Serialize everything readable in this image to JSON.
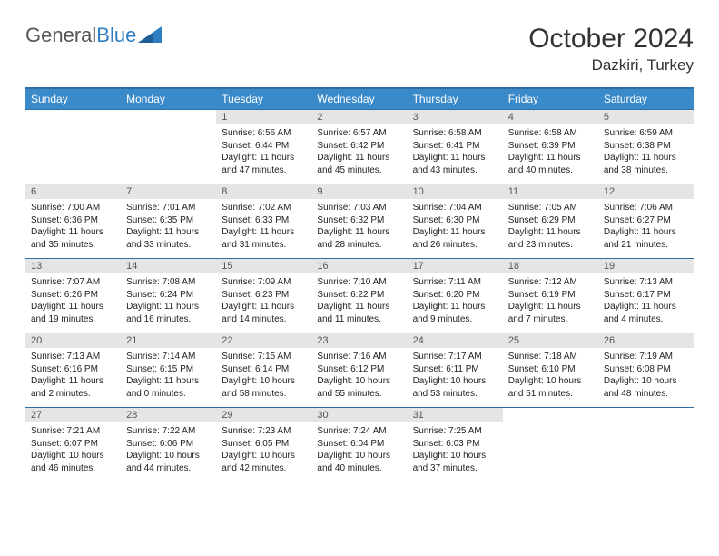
{
  "brand": {
    "part1": "General",
    "part2": "Blue"
  },
  "title": "October 2024",
  "location": "Dazkiri, Turkey",
  "colors": {
    "header_bg": "#3a89c9",
    "header_border": "#2f6fa3",
    "daynum_bg": "#e5e5e5",
    "text": "#222222"
  },
  "weekdays": [
    "Sunday",
    "Monday",
    "Tuesday",
    "Wednesday",
    "Thursday",
    "Friday",
    "Saturday"
  ],
  "grid": [
    [
      {
        "n": "",
        "lines": []
      },
      {
        "n": "",
        "lines": []
      },
      {
        "n": "1",
        "lines": [
          "Sunrise: 6:56 AM",
          "Sunset: 6:44 PM",
          "Daylight: 11 hours",
          "and 47 minutes."
        ]
      },
      {
        "n": "2",
        "lines": [
          "Sunrise: 6:57 AM",
          "Sunset: 6:42 PM",
          "Daylight: 11 hours",
          "and 45 minutes."
        ]
      },
      {
        "n": "3",
        "lines": [
          "Sunrise: 6:58 AM",
          "Sunset: 6:41 PM",
          "Daylight: 11 hours",
          "and 43 minutes."
        ]
      },
      {
        "n": "4",
        "lines": [
          "Sunrise: 6:58 AM",
          "Sunset: 6:39 PM",
          "Daylight: 11 hours",
          "and 40 minutes."
        ]
      },
      {
        "n": "5",
        "lines": [
          "Sunrise: 6:59 AM",
          "Sunset: 6:38 PM",
          "Daylight: 11 hours",
          "and 38 minutes."
        ]
      }
    ],
    [
      {
        "n": "6",
        "lines": [
          "Sunrise: 7:00 AM",
          "Sunset: 6:36 PM",
          "Daylight: 11 hours",
          "and 35 minutes."
        ]
      },
      {
        "n": "7",
        "lines": [
          "Sunrise: 7:01 AM",
          "Sunset: 6:35 PM",
          "Daylight: 11 hours",
          "and 33 minutes."
        ]
      },
      {
        "n": "8",
        "lines": [
          "Sunrise: 7:02 AM",
          "Sunset: 6:33 PM",
          "Daylight: 11 hours",
          "and 31 minutes."
        ]
      },
      {
        "n": "9",
        "lines": [
          "Sunrise: 7:03 AM",
          "Sunset: 6:32 PM",
          "Daylight: 11 hours",
          "and 28 minutes."
        ]
      },
      {
        "n": "10",
        "lines": [
          "Sunrise: 7:04 AM",
          "Sunset: 6:30 PM",
          "Daylight: 11 hours",
          "and 26 minutes."
        ]
      },
      {
        "n": "11",
        "lines": [
          "Sunrise: 7:05 AM",
          "Sunset: 6:29 PM",
          "Daylight: 11 hours",
          "and 23 minutes."
        ]
      },
      {
        "n": "12",
        "lines": [
          "Sunrise: 7:06 AM",
          "Sunset: 6:27 PM",
          "Daylight: 11 hours",
          "and 21 minutes."
        ]
      }
    ],
    [
      {
        "n": "13",
        "lines": [
          "Sunrise: 7:07 AM",
          "Sunset: 6:26 PM",
          "Daylight: 11 hours",
          "and 19 minutes."
        ]
      },
      {
        "n": "14",
        "lines": [
          "Sunrise: 7:08 AM",
          "Sunset: 6:24 PM",
          "Daylight: 11 hours",
          "and 16 minutes."
        ]
      },
      {
        "n": "15",
        "lines": [
          "Sunrise: 7:09 AM",
          "Sunset: 6:23 PM",
          "Daylight: 11 hours",
          "and 14 minutes."
        ]
      },
      {
        "n": "16",
        "lines": [
          "Sunrise: 7:10 AM",
          "Sunset: 6:22 PM",
          "Daylight: 11 hours",
          "and 11 minutes."
        ]
      },
      {
        "n": "17",
        "lines": [
          "Sunrise: 7:11 AM",
          "Sunset: 6:20 PM",
          "Daylight: 11 hours",
          "and 9 minutes."
        ]
      },
      {
        "n": "18",
        "lines": [
          "Sunrise: 7:12 AM",
          "Sunset: 6:19 PM",
          "Daylight: 11 hours",
          "and 7 minutes."
        ]
      },
      {
        "n": "19",
        "lines": [
          "Sunrise: 7:13 AM",
          "Sunset: 6:17 PM",
          "Daylight: 11 hours",
          "and 4 minutes."
        ]
      }
    ],
    [
      {
        "n": "20",
        "lines": [
          "Sunrise: 7:13 AM",
          "Sunset: 6:16 PM",
          "Daylight: 11 hours",
          "and 2 minutes."
        ]
      },
      {
        "n": "21",
        "lines": [
          "Sunrise: 7:14 AM",
          "Sunset: 6:15 PM",
          "Daylight: 11 hours",
          "and 0 minutes."
        ]
      },
      {
        "n": "22",
        "lines": [
          "Sunrise: 7:15 AM",
          "Sunset: 6:14 PM",
          "Daylight: 10 hours",
          "and 58 minutes."
        ]
      },
      {
        "n": "23",
        "lines": [
          "Sunrise: 7:16 AM",
          "Sunset: 6:12 PM",
          "Daylight: 10 hours",
          "and 55 minutes."
        ]
      },
      {
        "n": "24",
        "lines": [
          "Sunrise: 7:17 AM",
          "Sunset: 6:11 PM",
          "Daylight: 10 hours",
          "and 53 minutes."
        ]
      },
      {
        "n": "25",
        "lines": [
          "Sunrise: 7:18 AM",
          "Sunset: 6:10 PM",
          "Daylight: 10 hours",
          "and 51 minutes."
        ]
      },
      {
        "n": "26",
        "lines": [
          "Sunrise: 7:19 AM",
          "Sunset: 6:08 PM",
          "Daylight: 10 hours",
          "and 48 minutes."
        ]
      }
    ],
    [
      {
        "n": "27",
        "lines": [
          "Sunrise: 7:21 AM",
          "Sunset: 6:07 PM",
          "Daylight: 10 hours",
          "and 46 minutes."
        ]
      },
      {
        "n": "28",
        "lines": [
          "Sunrise: 7:22 AM",
          "Sunset: 6:06 PM",
          "Daylight: 10 hours",
          "and 44 minutes."
        ]
      },
      {
        "n": "29",
        "lines": [
          "Sunrise: 7:23 AM",
          "Sunset: 6:05 PM",
          "Daylight: 10 hours",
          "and 42 minutes."
        ]
      },
      {
        "n": "30",
        "lines": [
          "Sunrise: 7:24 AM",
          "Sunset: 6:04 PM",
          "Daylight: 10 hours",
          "and 40 minutes."
        ]
      },
      {
        "n": "31",
        "lines": [
          "Sunrise: 7:25 AM",
          "Sunset: 6:03 PM",
          "Daylight: 10 hours",
          "and 37 minutes."
        ]
      },
      {
        "n": "",
        "lines": []
      },
      {
        "n": "",
        "lines": []
      }
    ]
  ]
}
